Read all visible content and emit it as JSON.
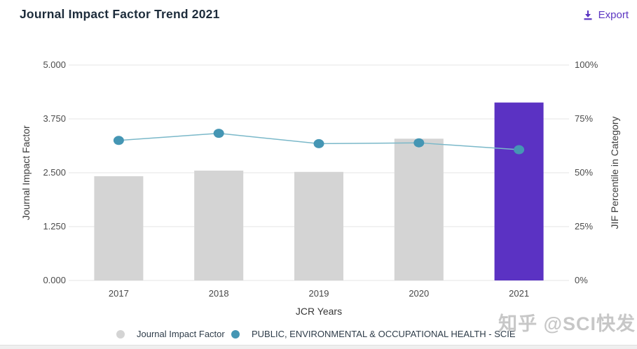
{
  "header": {
    "title": "Journal Impact Factor Trend 2021",
    "export_label": "Export"
  },
  "watermark": "知乎 @SCI快发",
  "colors": {
    "accent": "#5b35c2",
    "bar_default": "#d4d4d4",
    "bar_highlight": "#5b32c3",
    "line": "#7ab8c9",
    "point": "#4596b4",
    "grid": "#e4e4e4",
    "title_text": "#1d2c3b",
    "tick_text": "#4b4b4b"
  },
  "chart_data": {
    "type": "bar+line combo",
    "title": "Journal Impact Factor Trend 2021",
    "categories": [
      "2017",
      "2018",
      "2019",
      "2020",
      "2021"
    ],
    "series": [
      {
        "name": "Journal Impact Factor",
        "type": "bar",
        "axis": "left",
        "values": [
          2.42,
          2.55,
          2.52,
          3.29,
          4.13
        ],
        "highlight_index": 4
      },
      {
        "name": "PUBLIC, ENVIRONMENTAL & OCCUPATIONAL HEALTH - SCIE",
        "type": "line",
        "axis": "right",
        "values": [
          65.0,
          68.3,
          63.5,
          63.9,
          60.7
        ]
      }
    ],
    "xlabel": "JCR Years",
    "left_axis": {
      "label": "Journal Impact Factor",
      "range": [
        0,
        5
      ],
      "ticks": [
        "0.000",
        "1.250",
        "2.500",
        "3.750",
        "5.000"
      ]
    },
    "right_axis": {
      "label": "JIF Percentile in Category",
      "range": [
        0,
        100
      ],
      "ticks": [
        "0%",
        "25%",
        "50%",
        "75%",
        "100%"
      ]
    },
    "legend": [
      {
        "label": "Journal Impact Factor",
        "color": "#d4d4d4"
      },
      {
        "label": "PUBLIC, ENVIRONMENTAL & OCCUPATIONAL HEALTH - SCIE",
        "color": "#4596b4"
      }
    ],
    "grid": true,
    "legend_position": "bottom"
  }
}
